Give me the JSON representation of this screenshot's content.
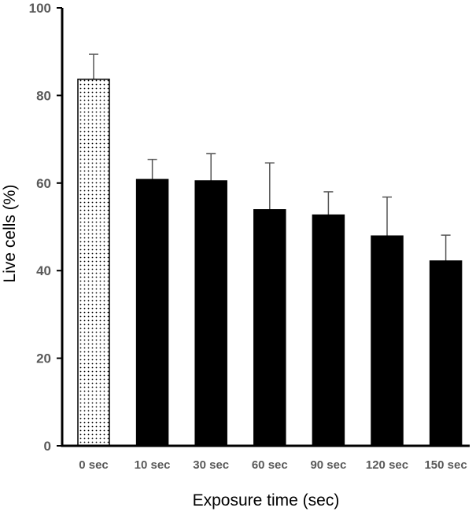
{
  "chart_data": {
    "type": "bar",
    "title": "",
    "xlabel": "Exposure time (sec)",
    "ylabel": "Live cells (%)",
    "ylim": [
      0,
      100
    ],
    "yticks": [
      0,
      20,
      40,
      60,
      80,
      100
    ],
    "grid": false,
    "categories": [
      "0 sec",
      "10 sec",
      "30 sec",
      "60 sec",
      "90 sec",
      "120 sec",
      "150 sec"
    ],
    "values": [
      83.7,
      60.8,
      60.5,
      53.9,
      52.7,
      47.9,
      42.2
    ],
    "errors": [
      5.7,
      4.6,
      6.2,
      10.7,
      5.3,
      8.9,
      5.9
    ],
    "bar_styles": [
      "dotted",
      "solid",
      "solid",
      "solid",
      "solid",
      "solid",
      "solid"
    ],
    "colors": {
      "solid": "#000000",
      "dotted_fill": "#ffffff",
      "error_bar": "#555555",
      "axis": "#000000"
    }
  }
}
